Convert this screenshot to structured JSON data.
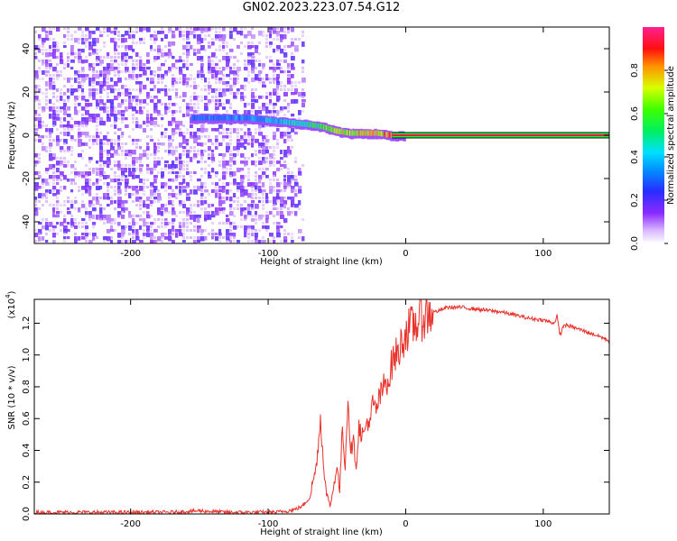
{
  "title": "GN02.2023.223.07.54.G12",
  "colors": {
    "snr_line": "#e8322b",
    "spectro_primary": "#7a1fff",
    "spectro_light": "#cda7ff"
  },
  "chart_data": [
    {
      "type": "heatmap",
      "title": "GN02.2023.223.07.54.G12",
      "xlabel": "Height of straight line (km)",
      "ylabel": "Frequency (Hz)",
      "xlim": [
        -270,
        148
      ],
      "ylim": [
        -50,
        50
      ],
      "xticks": [
        -200,
        -100,
        0,
        100
      ],
      "xtick_labels": [
        "-200",
        "-100",
        "0",
        "100"
      ],
      "yticks": [
        -40,
        -20,
        0,
        20,
        40
      ],
      "ytick_labels": [
        "-40",
        "-20",
        "0",
        "20",
        "40"
      ],
      "colorbar": {
        "label": "Normalized spectral amplitude",
        "range": [
          0,
          1
        ],
        "ticks": [
          0.0,
          0.2,
          0.4,
          0.6,
          0.8
        ],
        "tick_labels": [
          "0.0",
          "0.2",
          "0.4",
          "0.6",
          "0.8"
        ],
        "colormap": "rainbow (white-purple-blue-cyan-green-yellow-red-pink)"
      },
      "features": {
        "noise_region_x": [
          -270,
          -85
        ],
        "carrier_track": {
          "x": [
            -155,
            -140,
            -115,
            -100,
            -85,
            -70,
            -60,
            -50,
            -40,
            -30,
            -20,
            -10,
            0,
            50,
            100,
            148
          ],
          "frequency": [
            8,
            8,
            8,
            7,
            6,
            5,
            4,
            2,
            1,
            1,
            1,
            0,
            0,
            0,
            0,
            0
          ],
          "amplitude": [
            0.35,
            0.4,
            0.4,
            0.45,
            0.5,
            0.6,
            0.65,
            0.75,
            0.8,
            0.85,
            0.9,
            0.95,
            1.0,
            1.0,
            1.0,
            1.0
          ]
        },
        "steady_carrier_band_x": [
          -10,
          148
        ]
      },
      "grid": false
    },
    {
      "type": "line",
      "xlabel": "Height of straight line (km)",
      "ylabel": "SNR (10 * v/v)",
      "y_multiplier_label": "(x10",
      "y_multiplier_exp": "4",
      "y_multiplier_close": ")",
      "xlim": [
        -270,
        148
      ],
      "ylim": [
        0,
        1.35
      ],
      "xticks": [
        -200,
        -100,
        0,
        100
      ],
      "xtick_labels": [
        "-200",
        "-100",
        "0",
        "100"
      ],
      "yticks": [
        0.0,
        0.2,
        0.4,
        0.6,
        0.8,
        1.0,
        1.2
      ],
      "ytick_labels": [
        "0.0",
        "0.2",
        "0.4",
        "0.6",
        "0.8",
        "1.0",
        "1.2"
      ],
      "series": [
        {
          "x": [
            -270,
            -250,
            -230,
            -210,
            -190,
            -170,
            -150,
            -130,
            -110,
            -95,
            -85,
            -80,
            -75,
            -70,
            -65,
            -62,
            -60,
            -58,
            -56,
            -54,
            -52,
            -50,
            -48,
            -46,
            -44,
            -42,
            -40,
            -38,
            -36,
            -34,
            -32,
            -30,
            -28,
            -26,
            -24,
            -22,
            -20,
            -18,
            -16,
            -14,
            -12,
            -10,
            -8,
            -6,
            -4,
            -2,
            0,
            5,
            10,
            15,
            20,
            25,
            30,
            40,
            50,
            60,
            70,
            80,
            90,
            100,
            108,
            110,
            112,
            115,
            120,
            130,
            140,
            148
          ],
          "values": [
            0.01,
            0.01,
            0.01,
            0.01,
            0.01,
            0.01,
            0.02,
            0.01,
            0.01,
            0.01,
            0.02,
            0.03,
            0.05,
            0.1,
            0.3,
            0.6,
            0.35,
            0.15,
            0.06,
            0.08,
            0.2,
            0.3,
            0.15,
            0.55,
            0.3,
            0.75,
            0.4,
            0.45,
            0.3,
            0.55,
            0.5,
            0.5,
            0.6,
            0.55,
            0.7,
            0.65,
            0.7,
            0.75,
            0.8,
            0.85,
            0.85,
            0.95,
            1.0,
            1.0,
            1.05,
            1.1,
            1.15,
            1.18,
            1.22,
            1.25,
            1.27,
            1.28,
            1.3,
            1.3,
            1.29,
            1.28,
            1.27,
            1.25,
            1.23,
            1.22,
            1.2,
            1.25,
            1.12,
            1.19,
            1.18,
            1.15,
            1.12,
            1.09
          ]
        }
      ],
      "grid": false
    }
  ]
}
